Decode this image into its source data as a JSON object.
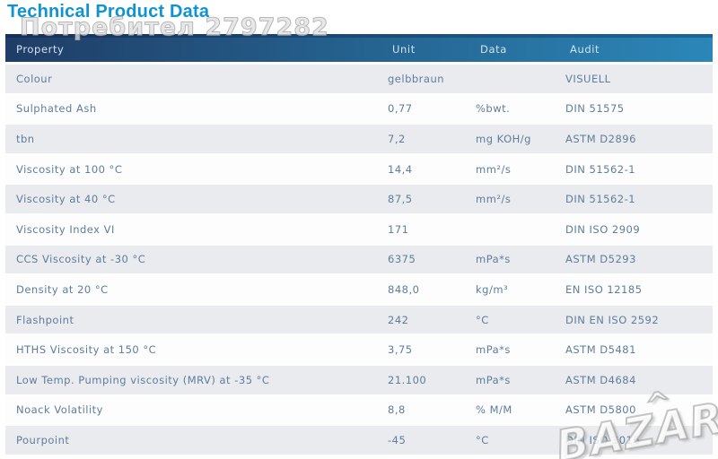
{
  "page": {
    "title": "Technical Product Data",
    "user_watermark": "Потребител 2797282",
    "site_watermark": "BAZAR",
    "site_watermark_roof": "^"
  },
  "colors": {
    "title-blue": "#0e93d5",
    "hdr-grad-left": "#1f3d66",
    "hdr-grad-right": "#2b87b8",
    "hdr-text": "#d3e2ef",
    "row-text": "#5f7d9d",
    "row-alt": "#e9ebee"
  },
  "table": {
    "columns": [
      "Property",
      "Unit",
      "Data",
      "Audit"
    ],
    "rows": [
      {
        "property": "Colour",
        "value": "gelbbraun",
        "unit": "",
        "audit": "VISUELL"
      },
      {
        "property": "Sulphated Ash",
        "value": "0,77",
        "unit": "%bwt.",
        "audit": "DIN 51575"
      },
      {
        "property": "tbn",
        "value": "7,2",
        "unit": "mg KOH/g",
        "audit": "ASTM D2896"
      },
      {
        "property": "Viscosity at 100 °C",
        "value": "14,4",
        "unit": "mm²/s",
        "audit": "DIN 51562-1"
      },
      {
        "property": "Viscosity at 40 °C",
        "value": "87,5",
        "unit": "mm²/s",
        "audit": "DIN 51562-1"
      },
      {
        "property": "Viscosity Index VI",
        "value": "171",
        "unit": "",
        "audit": "DIN ISO 2909"
      },
      {
        "property": "CCS Viscosity at -30 °C",
        "value": "6375",
        "unit": "mPa*s",
        "audit": "ASTM D5293"
      },
      {
        "property": "Density at 20 °C",
        "value": "848,0",
        "unit": "kg/m³",
        "audit": "EN ISO 12185"
      },
      {
        "property": "Flashpoint",
        "value": "242",
        "unit": "°C",
        "audit": "DIN EN ISO 2592"
      },
      {
        "property": "HTHS Viscosity at 150 °C",
        "value": "3,75",
        "unit": "mPa*s",
        "audit": "ASTM D5481"
      },
      {
        "property": "Low Temp. Pumping viscosity (MRV) at -35 °C",
        "value": "21.100",
        "unit": "mPa*s",
        "audit": "ASTM D4684"
      },
      {
        "property": "Noack Volatility",
        "value": "8,8",
        "unit": "% M/M",
        "audit": "ASTM D5800"
      },
      {
        "property": "Pourpoint",
        "value": "-45",
        "unit": "°C",
        "audit": "DIN ISO 3016"
      }
    ]
  }
}
